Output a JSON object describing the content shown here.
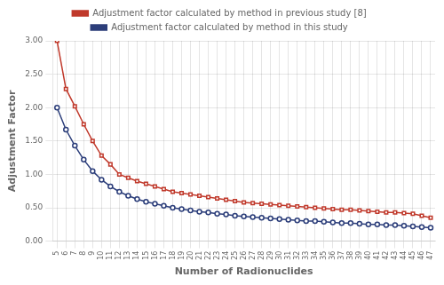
{
  "chart_data": {
    "type": "line",
    "xlabel": "Number of Radionuclides",
    "ylabel": "Adjustment Factor",
    "x": [
      5,
      6,
      7,
      8,
      9,
      10,
      11,
      12,
      13,
      14,
      15,
      16,
      17,
      18,
      19,
      20,
      21,
      22,
      23,
      24,
      25,
      26,
      27,
      28,
      29,
      30,
      31,
      32,
      33,
      34,
      35,
      36,
      37,
      38,
      39,
      40,
      41,
      42,
      43,
      44,
      45,
      46,
      47
    ],
    "series": [
      {
        "name": "Adjustment factor calculated by method in previous study [8]",
        "color": "#c0392b",
        "marker": "square",
        "values": [
          3.0,
          2.28,
          2.02,
          1.75,
          1.5,
          1.28,
          1.15,
          1.0,
          0.95,
          0.9,
          0.86,
          0.82,
          0.78,
          0.74,
          0.72,
          0.7,
          0.68,
          0.66,
          0.64,
          0.62,
          0.6,
          0.58,
          0.57,
          0.56,
          0.55,
          0.54,
          0.53,
          0.52,
          0.51,
          0.5,
          0.49,
          0.48,
          0.47,
          0.47,
          0.46,
          0.45,
          0.44,
          0.43,
          0.43,
          0.42,
          0.41,
          0.38,
          0.35
        ]
      },
      {
        "name": "Adjustment factor calculated by method in this study",
        "color": "#2c3e7a",
        "marker": "circle",
        "values": [
          2.0,
          1.67,
          1.43,
          1.22,
          1.05,
          0.92,
          0.82,
          0.74,
          0.68,
          0.63,
          0.59,
          0.56,
          0.53,
          0.5,
          0.48,
          0.46,
          0.44,
          0.43,
          0.41,
          0.4,
          0.38,
          0.37,
          0.36,
          0.35,
          0.34,
          0.33,
          0.32,
          0.31,
          0.3,
          0.3,
          0.29,
          0.28,
          0.27,
          0.27,
          0.26,
          0.25,
          0.25,
          0.24,
          0.24,
          0.23,
          0.22,
          0.21,
          0.2
        ]
      }
    ],
    "xlim": [
      4.5,
      47.5
    ],
    "xticks": [
      5,
      6,
      7,
      8,
      9,
      10,
      11,
      12,
      13,
      14,
      15,
      16,
      17,
      18,
      19,
      20,
      21,
      22,
      23,
      24,
      25,
      26,
      27,
      28,
      29,
      30,
      31,
      32,
      33,
      34,
      35,
      36,
      37,
      38,
      39,
      40,
      41,
      42,
      43,
      44,
      45,
      46,
      47
    ],
    "ylim": [
      0,
      3
    ],
    "yticks": [
      {
        "value": 0,
        "label": "0.00"
      },
      {
        "value": 0.5,
        "label": "0.50"
      },
      {
        "value": 1,
        "label": "1.00"
      },
      {
        "value": 1.5,
        "label": "1.50"
      },
      {
        "value": 2,
        "label": "2.00"
      },
      {
        "value": 2.5,
        "label": "2.50"
      },
      {
        "value": 3,
        "label": "3.00"
      }
    ],
    "grid": true,
    "legend": "top"
  }
}
